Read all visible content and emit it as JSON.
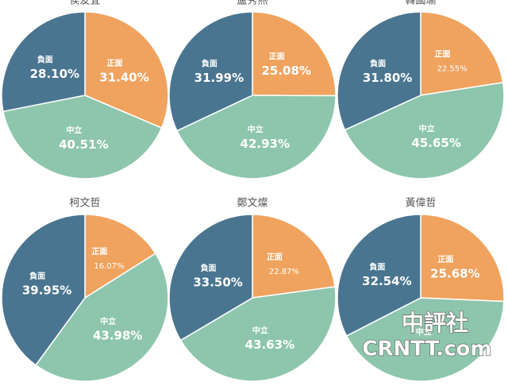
{
  "chart_data": [
    {
      "type": "pie",
      "title": "侯友宜",
      "categories": [
        "正面",
        "中立",
        "負面"
      ],
      "values": [
        31.4,
        40.51,
        28.1
      ],
      "value_labels": [
        "31.40%",
        "40.51%",
        "28.10%"
      ],
      "colors": [
        "#f0a35e",
        "#8ec6ad",
        "#4a7590"
      ]
    },
    {
      "type": "pie",
      "title": "盧秀燕",
      "categories": [
        "正面",
        "中立",
        "負面"
      ],
      "values": [
        25.08,
        42.93,
        31.99
      ],
      "value_labels": [
        "25.08%",
        "42.93%",
        "31.99%"
      ],
      "colors": [
        "#f0a35e",
        "#8ec6ad",
        "#4a7590"
      ]
    },
    {
      "type": "pie",
      "title": "韓國瑜",
      "categories": [
        "正面",
        "中立",
        "負面"
      ],
      "values": [
        22.55,
        45.65,
        31.8
      ],
      "value_labels": [
        "22.55%",
        "45.65%",
        "31.80%"
      ],
      "colors": [
        "#f0a35e",
        "#8ec6ad",
        "#4a7590"
      ]
    },
    {
      "type": "pie",
      "title": "柯文哲",
      "categories": [
        "正面",
        "中立",
        "負面"
      ],
      "values": [
        16.07,
        43.98,
        39.95
      ],
      "value_labels": [
        "16.07%",
        "43.98%",
        "39.95%"
      ],
      "colors": [
        "#f0a35e",
        "#8ec6ad",
        "#4a7590"
      ]
    },
    {
      "type": "pie",
      "title": "鄭文燦",
      "categories": [
        "正面",
        "中立",
        "負面"
      ],
      "values": [
        22.87,
        43.63,
        33.5
      ],
      "value_labels": [
        "22.87%",
        "43.63%",
        "33.50%"
      ],
      "colors": [
        "#f0a35e",
        "#8ec6ad",
        "#4a7590"
      ]
    },
    {
      "type": "pie",
      "title": "黃偉哲",
      "categories": [
        "正面",
        "中立",
        "負面"
      ],
      "values": [
        25.68,
        41.78,
        32.54
      ],
      "value_labels": [
        "25.68%",
        null,
        "32.54%"
      ],
      "colors": [
        "#f0a35e",
        "#8ec6ad",
        "#4a7590"
      ]
    }
  ],
  "watermark": {
    "line1": "中評社",
    "line2": "CRNTT.com"
  }
}
